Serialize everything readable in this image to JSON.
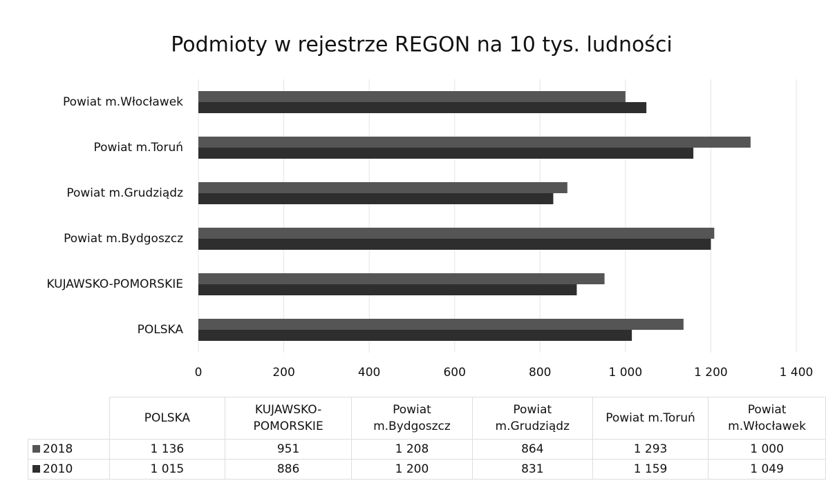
{
  "chart_data": {
    "type": "hbar",
    "title": "Podmioty w rejestrze REGON na 10 tys. ludności",
    "categories": [
      "POLSKA",
      "KUJAWSKO-POMORSKIE",
      "Powiat m.Bydgoszcz",
      "Powiat m.Grudziądz",
      "Powiat m.Toruń",
      "Powiat m.Włocławek"
    ],
    "series": [
      {
        "name": "2018",
        "color": "#555555",
        "values": [
          1136,
          951,
          1208,
          864,
          1293,
          1000
        ],
        "value_labels": [
          "1 136",
          "951",
          "1 208",
          "864",
          "1 293",
          "1 000"
        ]
      },
      {
        "name": "2010",
        "color": "#2e2e2e",
        "values": [
          1015,
          886,
          1200,
          831,
          1159,
          1049
        ],
        "value_labels": [
          "1 015",
          "886",
          "1 200",
          "831",
          "1 159",
          "1 049"
        ]
      }
    ],
    "xlim": [
      0,
      1400
    ],
    "xticks": [
      0,
      200,
      400,
      600,
      800,
      {
        "value": 1000,
        "label": "1 000"
      },
      {
        "value": 1200,
        "label": "1 200"
      },
      {
        "value": 1400,
        "label": "1 400"
      }
    ],
    "grid": true
  }
}
